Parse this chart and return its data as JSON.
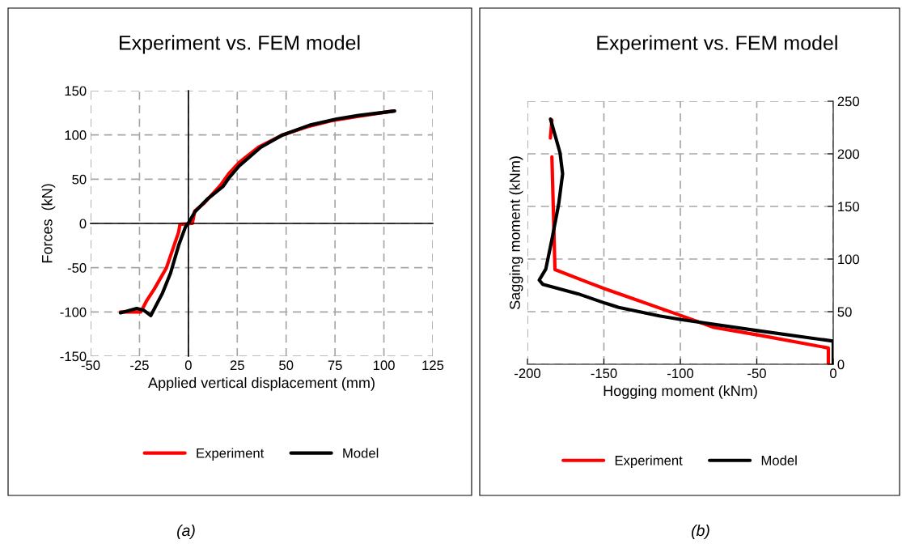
{
  "chart_data": [
    {
      "type": "line",
      "title": "Experiment vs. FEM model",
      "xlabel": "Applied vertical displacement (mm)",
      "ylabel": "Forces  (kN)",
      "xlim": [
        -50,
        125
      ],
      "xticks": [
        -50,
        -25,
        0,
        25,
        50,
        75,
        100,
        125
      ],
      "ylim": [
        -150,
        150
      ],
      "yticks": [
        -150,
        -100,
        -50,
        0,
        50,
        100,
        150
      ],
      "grid": true,
      "legend": "bottom",
      "annotations": [
        "(a)"
      ],
      "series": [
        {
          "name": "Experiment",
          "color": "#ff0000",
          "x": [
            -34.7,
            -24.3,
            -21.5,
            -17.4,
            -11.2,
            -5,
            -4.3,
            2,
            3.3,
            8.1,
            16.4,
            20.6,
            26,
            35.8,
            48.2,
            60.6,
            73,
            87,
            104.8
          ],
          "values": [
            -100,
            -100,
            -88,
            -74,
            -50,
            -10,
            -1,
            0,
            14,
            23,
            43,
            56,
            69,
            86,
            100,
            109,
            116,
            121,
            127
          ]
        },
        {
          "name": "Model",
          "color": "#000000",
          "x": [
            -34.7,
            -26.4,
            -22.9,
            -19.2,
            -13.3,
            -9.1,
            -5,
            -1.5,
            0.5,
            3.3,
            9.5,
            17.8,
            20.6,
            26,
            37,
            48.2,
            62,
            75.8,
            87,
            105.5
          ],
          "values": [
            -101,
            -96,
            -98,
            -104,
            -79,
            -56,
            -25,
            -4,
            2,
            13,
            27,
            42,
            51,
            65,
            86,
            100,
            111,
            118,
            122,
            127
          ]
        }
      ]
    },
    {
      "type": "line",
      "title": "Experiment vs. FEM model",
      "xlabel": "Hogging moment (kNm)",
      "ylabel": "Sagging moment (kNm)",
      "xlim": [
        -200,
        0
      ],
      "xticks": [
        -200,
        -150,
        -100,
        -50,
        0
      ],
      "ylim": [
        0,
        250
      ],
      "yticks": [
        0,
        50,
        100,
        150,
        200,
        250
      ],
      "grid": true,
      "legend": "bottom",
      "annotations": [
        "(b)"
      ],
      "series": [
        {
          "name": "Experiment",
          "color": "#ff0000",
          "x": [
            -3.2,
            -3.2,
            -49.7,
            -78,
            -101,
            -149,
            -160,
            -182,
            -184,
            null,
            -185,
            -184
          ],
          "values": [
            0,
            15.5,
            28,
            35,
            47,
            71.6,
            77.6,
            90,
            197,
            null,
            215,
            232
          ]
        },
        {
          "name": "Model",
          "color": "#000000",
          "x": [
            0,
            0,
            -49.7,
            -99.5,
            -113.7,
            -140.3,
            -149,
            -167,
            -190,
            -192.3,
            -188,
            -184,
            -179.6,
            -177,
            -178.7,
            -182,
            -184.9
          ],
          "values": [
            0,
            22,
            32,
            42.5,
            46,
            54,
            58,
            67,
            76,
            80,
            90.5,
            118.6,
            152,
            181,
            201,
            218,
            233
          ]
        }
      ]
    }
  ]
}
